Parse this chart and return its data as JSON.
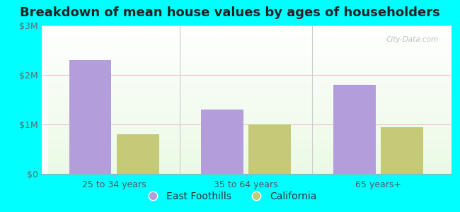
{
  "title": "Breakdown of mean house values by ages of householders",
  "categories": [
    "25 to 34 years",
    "35 to 64 years",
    "65 years+"
  ],
  "east_foothills": [
    2300000,
    1300000,
    1800000
  ],
  "california": [
    800000,
    1000000,
    950000
  ],
  "bar_color_ef": "#b39ddb",
  "bar_color_ca": "#c5c978",
  "yticks": [
    0,
    1000000,
    2000000,
    3000000
  ],
  "ytick_labels": [
    "$0",
    "$1M",
    "$2M",
    "$3M"
  ],
  "ylim": [
    0,
    3000000
  ],
  "outer_background": "#00ffff",
  "legend_ef_label": "East Foothills",
  "legend_ca_label": "California",
  "watermark": "City-Data.com",
  "title_fontsize": 13,
  "tick_fontsize": 9,
  "legend_fontsize": 10,
  "grid_color": "#f0c0d0",
  "separator_color": "#cccccc"
}
